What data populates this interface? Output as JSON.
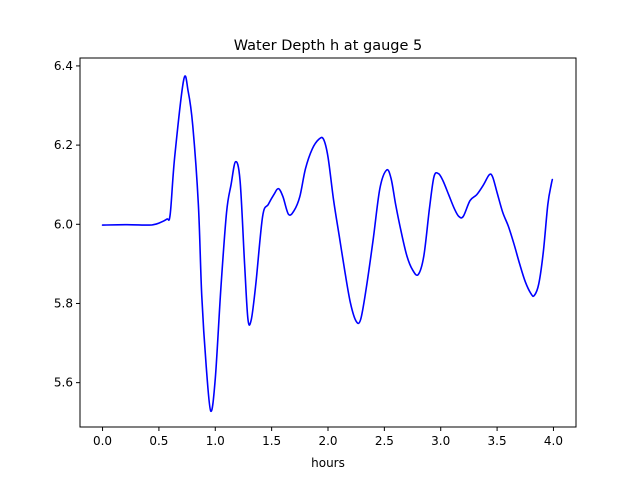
{
  "chart_data": {
    "type": "line",
    "title": "Water Depth h at gauge 5",
    "xlabel": "hours",
    "ylabel": "",
    "xlim": [
      -0.2,
      4.2
    ],
    "ylim": [
      5.488,
      6.42
    ],
    "grid": false,
    "x_ticks": [
      0.0,
      0.5,
      1.0,
      1.5,
      2.0,
      2.5,
      3.0,
      3.5,
      4.0
    ],
    "x_tick_labels": [
      "0.0",
      "0.5",
      "1.0",
      "1.5",
      "2.0",
      "2.5",
      "3.0",
      "3.5",
      "4.0"
    ],
    "y_ticks": [
      5.6,
      5.8,
      6.0,
      6.2,
      6.4
    ],
    "y_tick_labels": [
      "5.6",
      "5.8",
      "6.0",
      "6.2",
      "6.4"
    ],
    "series": [
      {
        "color": "#0000ff",
        "points": [
          [
            0.0,
            5.998
          ],
          [
            0.2,
            5.999
          ],
          [
            0.4,
            5.998
          ],
          [
            0.45,
            5.999
          ],
          [
            0.5,
            6.003
          ],
          [
            0.57,
            6.013
          ],
          [
            0.6,
            6.025
          ],
          [
            0.64,
            6.17
          ],
          [
            0.72,
            6.365
          ],
          [
            0.76,
            6.335
          ],
          [
            0.8,
            6.25
          ],
          [
            0.85,
            6.05
          ],
          [
            0.88,
            5.82
          ],
          [
            0.92,
            5.64
          ],
          [
            0.96,
            5.528
          ],
          [
            1.0,
            5.61
          ],
          [
            1.05,
            5.84
          ],
          [
            1.1,
            6.03
          ],
          [
            1.14,
            6.1
          ],
          [
            1.18,
            6.158
          ],
          [
            1.22,
            6.11
          ],
          [
            1.26,
            5.9
          ],
          [
            1.29,
            5.76
          ],
          [
            1.32,
            5.76
          ],
          [
            1.36,
            5.85
          ],
          [
            1.42,
            6.02
          ],
          [
            1.47,
            6.05
          ],
          [
            1.52,
            6.075
          ],
          [
            1.56,
            6.09
          ],
          [
            1.6,
            6.07
          ],
          [
            1.65,
            6.025
          ],
          [
            1.7,
            6.035
          ],
          [
            1.75,
            6.07
          ],
          [
            1.8,
            6.14
          ],
          [
            1.86,
            6.19
          ],
          [
            1.92,
            6.215
          ],
          [
            1.96,
            6.215
          ],
          [
            2.0,
            6.17
          ],
          [
            2.05,
            6.06
          ],
          [
            2.1,
            5.97
          ],
          [
            2.15,
            5.88
          ],
          [
            2.2,
            5.8
          ],
          [
            2.25,
            5.755
          ],
          [
            2.29,
            5.76
          ],
          [
            2.34,
            5.84
          ],
          [
            2.4,
            5.96
          ],
          [
            2.46,
            6.09
          ],
          [
            2.52,
            6.137
          ],
          [
            2.56,
            6.115
          ],
          [
            2.6,
            6.05
          ],
          [
            2.65,
            5.98
          ],
          [
            2.7,
            5.92
          ],
          [
            2.75,
            5.885
          ],
          [
            2.8,
            5.873
          ],
          [
            2.85,
            5.92
          ],
          [
            2.9,
            6.04
          ],
          [
            2.94,
            6.12
          ],
          [
            2.98,
            6.128
          ],
          [
            3.02,
            6.11
          ],
          [
            3.07,
            6.075
          ],
          [
            3.12,
            6.04
          ],
          [
            3.16,
            6.02
          ],
          [
            3.2,
            6.02
          ],
          [
            3.26,
            6.06
          ],
          [
            3.32,
            6.075
          ],
          [
            3.38,
            6.1
          ],
          [
            3.43,
            6.125
          ],
          [
            3.46,
            6.12
          ],
          [
            3.5,
            6.08
          ],
          [
            3.55,
            6.03
          ],
          [
            3.6,
            5.995
          ],
          [
            3.65,
            5.95
          ],
          [
            3.7,
            5.9
          ],
          [
            3.75,
            5.855
          ],
          [
            3.8,
            5.825
          ],
          [
            3.83,
            5.82
          ],
          [
            3.87,
            5.85
          ],
          [
            3.91,
            5.93
          ],
          [
            3.95,
            6.05
          ],
          [
            3.98,
            6.1
          ],
          [
            3.99,
            6.113
          ]
        ]
      }
    ]
  }
}
